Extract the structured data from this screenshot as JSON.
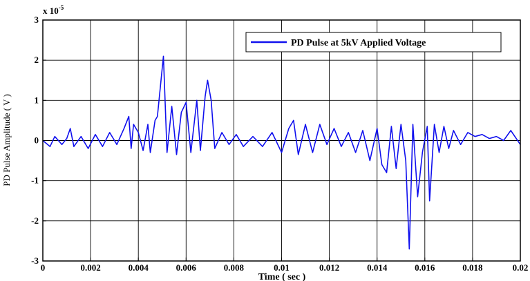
{
  "chart_data": {
    "type": "line",
    "title": "",
    "xlabel": "Time ( sec )",
    "ylabel": "PD Pulse Amplitude ( V )",
    "y_multiplier": "x 10",
    "y_exponent": "-5",
    "xlim": [
      0,
      0.02
    ],
    "ylim": [
      -3,
      3
    ],
    "grid": true,
    "legend_position": "top-right",
    "x_ticks": [
      {
        "value": 0,
        "label": "0"
      },
      {
        "value": 0.002,
        "label": "0.002"
      },
      {
        "value": 0.004,
        "label": "0.004"
      },
      {
        "value": 0.006,
        "label": "0.006"
      },
      {
        "value": 0.008,
        "label": "0.008"
      },
      {
        "value": 0.01,
        "label": "0.01"
      },
      {
        "value": 0.012,
        "label": "0.012"
      },
      {
        "value": 0.014,
        "label": "0.014"
      },
      {
        "value": 0.016,
        "label": "0.016"
      },
      {
        "value": 0.018,
        "label": "0.018"
      },
      {
        "value": 0.02,
        "label": "0.02"
      }
    ],
    "y_ticks": [
      {
        "value": -3,
        "label": "-3"
      },
      {
        "value": -2,
        "label": "-2"
      },
      {
        "value": -1,
        "label": "-1"
      },
      {
        "value": 0,
        "label": "0"
      },
      {
        "value": 1,
        "label": "1"
      },
      {
        "value": 2,
        "label": "2"
      },
      {
        "value": 3,
        "label": "3"
      }
    ],
    "series": [
      {
        "name": "PD Pulse  at  5kV Applied Voltage",
        "color": "#1010ee",
        "x": [
          0,
          0.0003,
          0.0005,
          0.0008,
          0.001,
          0.00115,
          0.0013,
          0.0016,
          0.0019,
          0.0022,
          0.0025,
          0.0028,
          0.0031,
          0.0034,
          0.0036,
          0.0037,
          0.0038,
          0.004,
          0.0042,
          0.0044,
          0.0045,
          0.0047,
          0.0048,
          0.00505,
          0.0052,
          0.0054,
          0.0056,
          0.0058,
          0.006,
          0.0062,
          0.00645,
          0.0066,
          0.0068,
          0.0069,
          0.00705,
          0.0072,
          0.0075,
          0.0078,
          0.0081,
          0.0084,
          0.0088,
          0.0092,
          0.0096,
          0.01,
          0.0103,
          0.0105,
          0.0107,
          0.011,
          0.0113,
          0.0116,
          0.0119,
          0.0122,
          0.0125,
          0.0128,
          0.0131,
          0.0134,
          0.0137,
          0.014,
          0.0142,
          0.0144,
          0.0146,
          0.0148,
          0.015,
          0.0152,
          0.01535,
          0.0155,
          0.0157,
          0.0159,
          0.0161,
          0.0162,
          0.0164,
          0.0166,
          0.0168,
          0.017,
          0.0172,
          0.0175,
          0.0178,
          0.0181,
          0.0184,
          0.0187,
          0.019,
          0.0193,
          0.0196,
          0.02
        ],
        "y": [
          0.0,
          -0.15,
          0.1,
          -0.1,
          0.05,
          0.3,
          -0.15,
          0.1,
          -0.2,
          0.15,
          -0.15,
          0.2,
          -0.1,
          0.3,
          0.6,
          -0.2,
          0.4,
          0.2,
          -0.25,
          0.4,
          -0.3,
          0.5,
          0.6,
          2.1,
          -0.3,
          0.85,
          -0.35,
          0.7,
          0.95,
          -0.3,
          1.0,
          -0.25,
          1.1,
          1.5,
          1.0,
          -0.2,
          0.2,
          -0.1,
          0.15,
          -0.15,
          0.1,
          -0.15,
          0.2,
          -0.3,
          0.3,
          0.5,
          -0.35,
          0.4,
          -0.3,
          0.4,
          -0.1,
          0.3,
          -0.15,
          0.2,
          -0.3,
          0.25,
          -0.5,
          0.3,
          -0.6,
          -0.8,
          0.35,
          -0.7,
          0.4,
          -0.5,
          -2.7,
          0.4,
          -1.4,
          -0.3,
          0.35,
          -1.5,
          0.4,
          -0.3,
          0.35,
          -0.2,
          0.25,
          -0.1,
          0.2,
          0.1,
          0.15,
          0.05,
          0.1,
          0.0,
          0.25,
          -0.1
        ]
      }
    ]
  }
}
